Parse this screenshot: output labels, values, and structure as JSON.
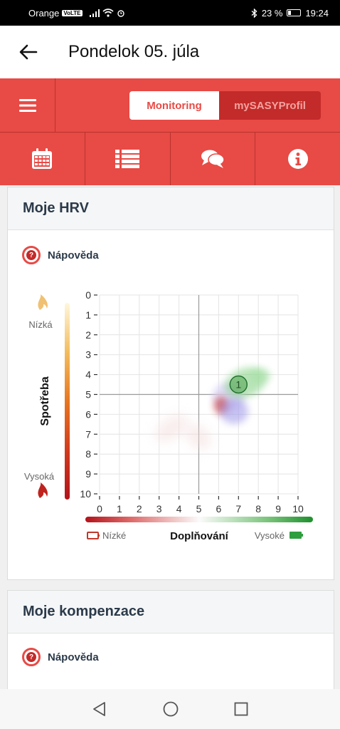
{
  "status_bar": {
    "carrier": "Orange",
    "volte": "VoLTE",
    "battery": "23 %",
    "time": "19:24"
  },
  "header": {
    "title": "Pondelok 05. júla"
  },
  "tabs": {
    "monitoring": "Monitoring",
    "profile": "mySASYProfil"
  },
  "icon_bar": [
    "calendar-icon",
    "list-icon",
    "comments-icon",
    "info-icon"
  ],
  "hrv_card": {
    "title": "Moje HRV",
    "help_label": "Nápověda",
    "y_axis_title": "Spotřeba",
    "y_top_label": "Nízká",
    "y_bottom_label": "Vysoká",
    "x_axis_title": "Doplňování",
    "x_left_label": "Nízké",
    "x_right_label": "Vysoké",
    "point_label": "1"
  },
  "comp_card": {
    "title": "Moje kompenzace",
    "help_label": "Nápověda"
  },
  "chart_data": {
    "type": "scatter",
    "x_ticks": [
      "0",
      "1",
      "2",
      "3",
      "4",
      "5",
      "6",
      "7",
      "8",
      "9",
      "10"
    ],
    "y_ticks": [
      "0",
      "1",
      "2",
      "3",
      "4",
      "5",
      "6",
      "7",
      "8",
      "9",
      "10"
    ],
    "xlim": [
      0,
      10
    ],
    "ylim": [
      0,
      10
    ],
    "y_inverted": true,
    "grid": true,
    "crosshair": [
      5,
      5
    ],
    "points": [
      {
        "label": "1",
        "x": 7,
        "y": 4.5
      }
    ],
    "colors": {
      "accent": "#e84a45",
      "low_refill": "#c0392b",
      "high_refill": "#2e9e3e"
    }
  }
}
